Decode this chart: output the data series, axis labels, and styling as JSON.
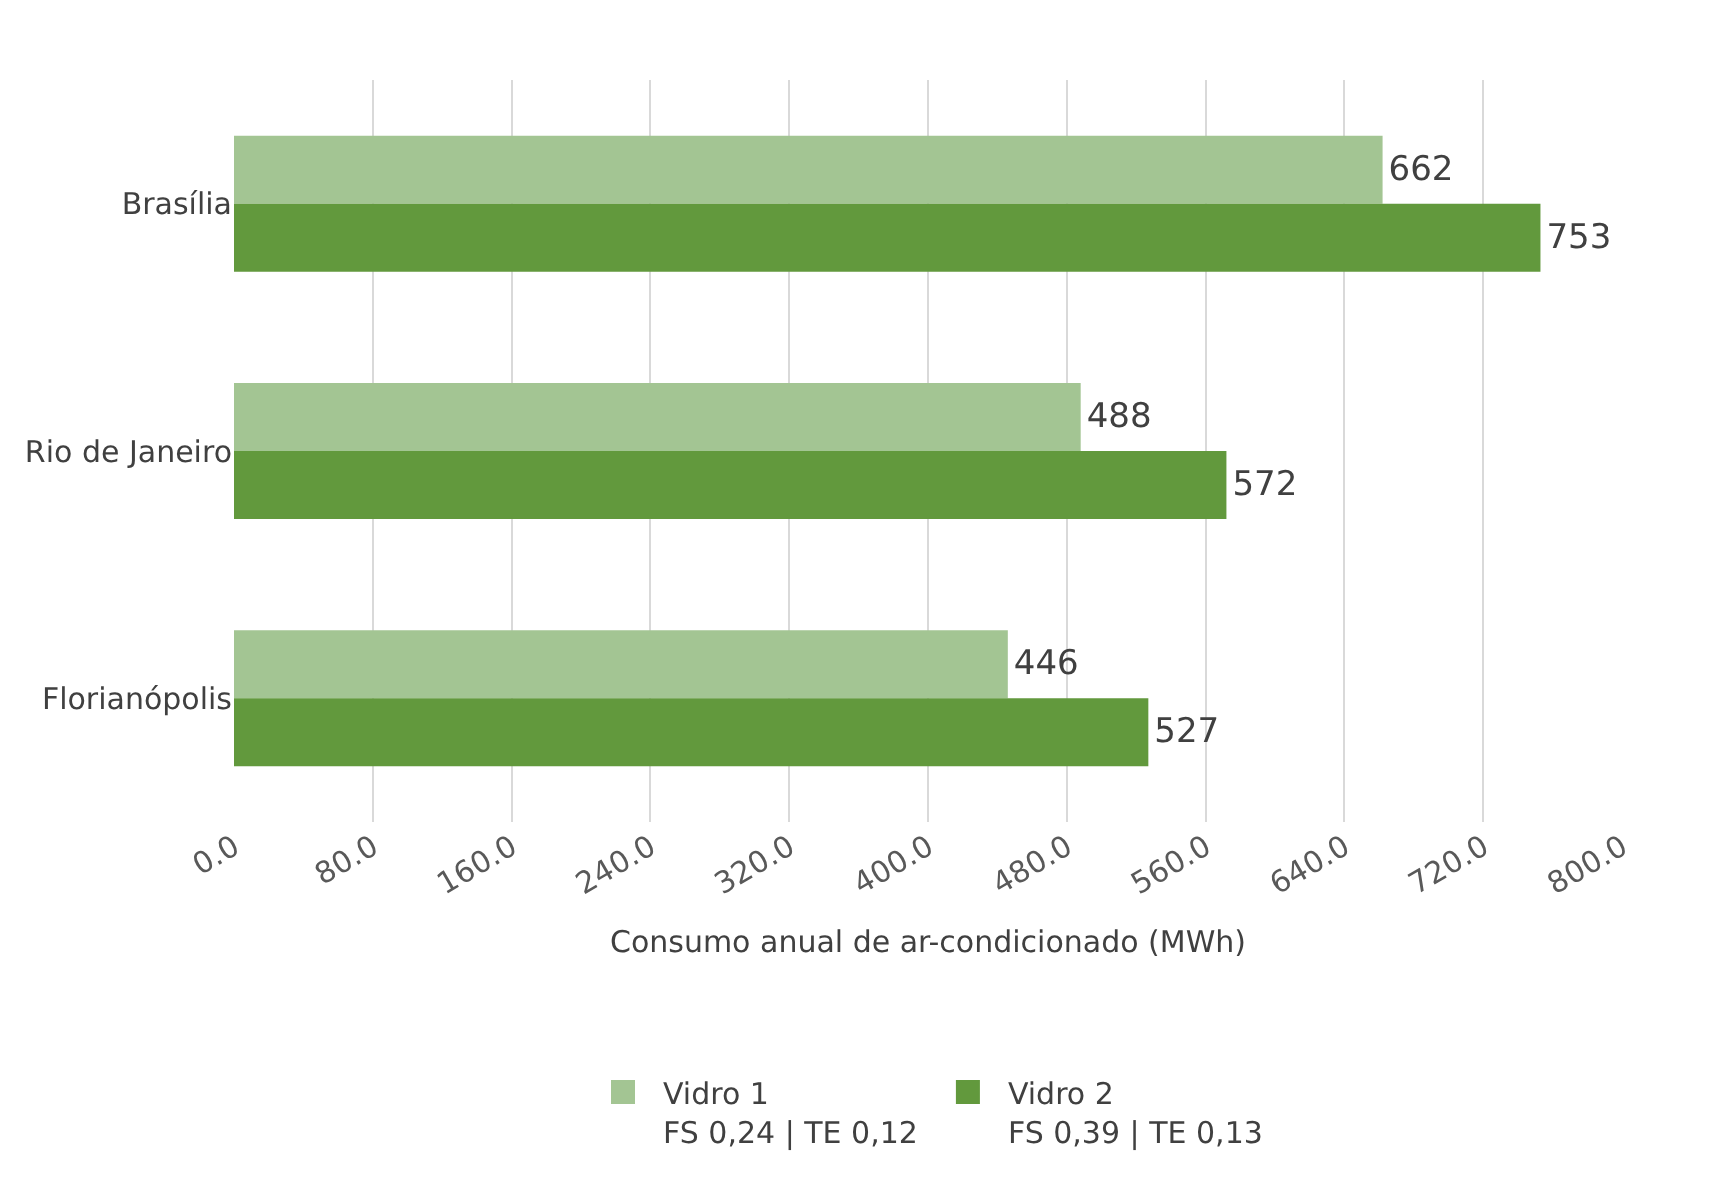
{
  "chart_data": {
    "type": "bar",
    "orientation": "horizontal",
    "xlabel": "Consumo anual de ar-condicionado (MWh)",
    "categories": [
      "Brasília",
      "Rio de Janeiro",
      "Florianópolis"
    ],
    "series": [
      {
        "name": "Vidro 1\nFS 0,24 | TE 0,12",
        "color": "#a3c593",
        "values": [
          662,
          488,
          446
        ]
      },
      {
        "name": "Vidro 2\nFS 0,39 | TE 0,13",
        "color": "#62993d",
        "values": [
          753,
          572,
          527
        ]
      }
    ],
    "xlim": [
      0,
      800
    ],
    "xticks": [
      {
        "value": 0,
        "label": "0.0"
      },
      {
        "value": 80,
        "label": "80.0"
      },
      {
        "value": 160,
        "label": "160.0"
      },
      {
        "value": 240,
        "label": "240.0"
      },
      {
        "value": 320,
        "label": "320.0"
      },
      {
        "value": 400,
        "label": "400.0"
      },
      {
        "value": 480,
        "label": "480.0"
      },
      {
        "value": 560,
        "label": "560.0"
      },
      {
        "value": 640,
        "label": "640.0"
      },
      {
        "value": 720,
        "label": "720.0"
      },
      {
        "value": 800,
        "label": "800.0"
      }
    ],
    "data_labels": true,
    "grid": "x",
    "legend": "bottom"
  }
}
